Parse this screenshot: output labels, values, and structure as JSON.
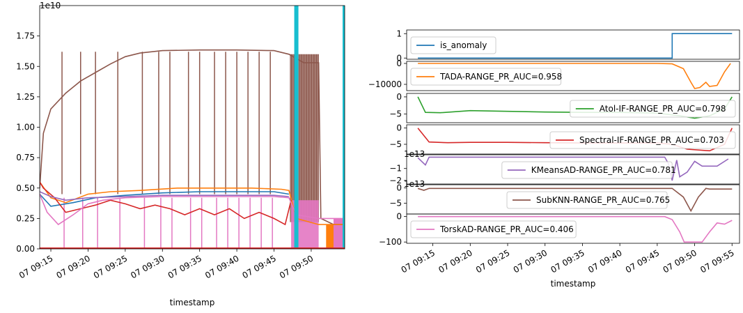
{
  "chart_data": [
    {
      "type": "line",
      "xlabel": "timestamp",
      "ylabel": "",
      "offset_text": "1e10",
      "xlim": [
        "09:13:30",
        "09:54:30"
      ],
      "ylim": [
        0,
        2.0
      ],
      "x_ticks": [
        "07 09:15",
        "07 09:20",
        "07 09:25",
        "07 09:30",
        "07 09:35",
        "07 09:40",
        "07 09:45",
        "07 09:50"
      ],
      "y_ticks": [
        "0.00",
        "0.25",
        "0.50",
        "0.75",
        "1.00",
        "1.25",
        "1.50",
        "1.75"
      ],
      "grid": false,
      "series": [
        {
          "color": "#8c564b",
          "points": [
            [
              "09:13:30",
              0.5
            ],
            [
              "09:14",
              0.95
            ],
            [
              "09:15",
              1.15
            ],
            [
              "09:17",
              1.28
            ],
            [
              "09:19",
              1.38
            ],
            [
              "09:21",
              1.45
            ],
            [
              "09:23",
              1.52
            ],
            [
              "09:25",
              1.58
            ],
            [
              "09:27",
              1.61
            ],
            [
              "09:30",
              1.63
            ],
            [
              "09:35",
              1.635
            ],
            [
              "09:40",
              1.635
            ],
            [
              "09:45",
              1.63
            ],
            [
              "09:47",
              1.6
            ],
            [
              "09:49",
              1.53
            ],
            [
              "09:51",
              1.53
            ],
            [
              "09:51.3",
              0.25
            ],
            [
              "09:53",
              0.2
            ],
            [
              "09:54.5",
              0.2
            ]
          ]
        },
        {
          "color": "#ff7f0e",
          "points": [
            [
              "09:13:30",
              0.55
            ],
            [
              "09:15",
              0.42
            ],
            [
              "09:17",
              0.38
            ],
            [
              "09:20",
              0.45
            ],
            [
              "09:23",
              0.47
            ],
            [
              "09:27",
              0.48
            ],
            [
              "09:32",
              0.5
            ],
            [
              "09:37",
              0.5
            ],
            [
              "09:42",
              0.5
            ],
            [
              "09:46",
              0.49
            ],
            [
              "09:47",
              0.48
            ],
            [
              "09:48",
              0.25
            ],
            [
              "09:51",
              0.2
            ],
            [
              "09:54.5",
              0.2
            ]
          ]
        },
        {
          "color": "#1f77b4",
          "points": [
            [
              "09:13:30",
              0.45
            ],
            [
              "09:15",
              0.35
            ],
            [
              "09:18",
              0.38
            ],
            [
              "09:21",
              0.42
            ],
            [
              "09:25",
              0.44
            ],
            [
              "09:30",
              0.46
            ],
            [
              "09:35",
              0.47
            ],
            [
              "09:40",
              0.47
            ],
            [
              "09:45",
              0.47
            ],
            [
              "09:47",
              0.45
            ]
          ]
        },
        {
          "color": "#d62728",
          "points": [
            [
              "09:13:30",
              0.55
            ],
            [
              "09:14",
              0.5
            ],
            [
              "09:15.5",
              0.42
            ],
            [
              "09:17",
              0.3
            ],
            [
              "09:19",
              0.33
            ],
            [
              "09:21",
              0.36
            ],
            [
              "09:23",
              0.4
            ],
            [
              "09:25",
              0.37
            ],
            [
              "09:27",
              0.33
            ],
            [
              "09:29",
              0.36
            ],
            [
              "09:31",
              0.33
            ],
            [
              "09:33",
              0.28
            ],
            [
              "09:35",
              0.33
            ],
            [
              "09:37",
              0.28
            ],
            [
              "09:39",
              0.33
            ],
            [
              "09:41",
              0.25
            ],
            [
              "09:43",
              0.3
            ],
            [
              "09:45",
              0.25
            ],
            [
              "09:46.5",
              0.2
            ],
            [
              "09:47.3",
              0.4
            ]
          ]
        },
        {
          "color": "#9467bd",
          "points": [
            [
              "09:13:30",
              0.47
            ],
            [
              "09:15",
              0.43
            ],
            [
              "09:17",
              0.4
            ],
            [
              "09:20",
              0.42
            ],
            [
              "09:25",
              0.43
            ],
            [
              "09:30",
              0.44
            ],
            [
              "09:35",
              0.44
            ],
            [
              "09:40",
              0.44
            ],
            [
              "09:45",
              0.44
            ],
            [
              "09:47",
              0.43
            ]
          ]
        },
        {
          "color": "#e377c2",
          "points": [
            [
              "09:13:30",
              0.45
            ],
            [
              "09:14.5",
              0.3
            ],
            [
              "09:16",
              0.2
            ],
            [
              "09:18",
              0.28
            ],
            [
              "09:20",
              0.37
            ],
            [
              "09:22",
              0.4
            ],
            [
              "09:25",
              0.42
            ],
            [
              "09:30",
              0.43
            ],
            [
              "09:35",
              0.43
            ],
            [
              "09:40",
              0.43
            ],
            [
              "09:45",
              0.43
            ],
            [
              "09:47",
              0.42
            ],
            [
              "09:48",
              0.28
            ],
            [
              "09:51",
              0.25
            ],
            [
              "09:54.5",
              0.25
            ]
          ]
        },
        {
          "color": "#17becf",
          "points": [
            [
              "09:13:30",
              0.0
            ],
            [
              "09:54.5",
              0.0
            ]
          ]
        }
      ]
    },
    {
      "type": "line",
      "xlabel": "timestamp",
      "x_ticks": [
        "07 09:15",
        "07 09:20",
        "07 09:25",
        "07 09:30",
        "07 09:35",
        "07 09:40",
        "07 09:45",
        "07 09:50",
        "07 09:55"
      ],
      "xlim": [
        "09:11:30",
        "09:56:00"
      ],
      "subplots": [
        {
          "name": "is_anomaly",
          "legend": "is_anomaly",
          "color": "#1f77b4",
          "y_ticks": [
            "0",
            "1"
          ],
          "ylim": [
            -0.05,
            1.15
          ],
          "offset_text": "",
          "legend_pos": "upper left",
          "points": [
            [
              "09:13",
              0
            ],
            [
              "09:47",
              0
            ],
            [
              "09:47",
              1
            ],
            [
              "09:55",
              1
            ]
          ]
        },
        {
          "name": "TADA",
          "legend": "TADA-RANGE_PR_AUC=0.958",
          "color": "#ff7f0e",
          "y_ticks": [
            "0",
            "−10000"
          ],
          "ylim": [
            -13000,
            1000
          ],
          "offset_text": "",
          "legend_pos": "left",
          "points": [
            [
              "09:13",
              0
            ],
            [
              "09:45",
              0
            ],
            [
              "09:47",
              -200
            ],
            [
              "09:48.5",
              -2500
            ],
            [
              "09:49.5",
              -9000
            ],
            [
              "09:50",
              -12000
            ],
            [
              "09:50.7",
              -11500
            ],
            [
              "09:51.5",
              -9000
            ],
            [
              "09:52",
              -11000
            ],
            [
              "09:53",
              -10500
            ],
            [
              "09:54",
              -4000
            ],
            [
              "09:54.8",
              0
            ]
          ]
        },
        {
          "name": "Atol-IF",
          "legend": "Atol-IF-RANGE_PR_AUC=0.798",
          "color": "#2ca02c",
          "y_ticks": [
            "0",
            "−5"
          ],
          "ylim": [
            -7.5,
            1.0
          ],
          "offset_text": "",
          "legend_pos": "right",
          "points": [
            [
              "09:13",
              0
            ],
            [
              "09:14",
              -4.5
            ],
            [
              "09:16",
              -4.6
            ],
            [
              "09:20",
              -4.0
            ],
            [
              "09:25",
              -4.2
            ],
            [
              "09:30",
              -4.4
            ],
            [
              "09:35",
              -4.5
            ],
            [
              "09:40",
              -4.5
            ],
            [
              "09:45",
              -4.7
            ],
            [
              "09:48",
              -5.5
            ],
            [
              "09:50",
              -6.2
            ],
            [
              "09:52",
              -5.5
            ],
            [
              "09:54",
              -3.5
            ],
            [
              "09:55",
              0
            ]
          ]
        },
        {
          "name": "Spectral-IF",
          "legend": "Spectral-IF-RANGE_PR_AUC=0.703",
          "color": "#d62728",
          "y_ticks": [
            "0",
            "−5"
          ],
          "ylim": [
            -8.0,
            1.0
          ],
          "offset_text": "",
          "legend_pos": "right",
          "points": [
            [
              "09:13",
              0
            ],
            [
              "09:14.5",
              -4.3
            ],
            [
              "09:17",
              -4.5
            ],
            [
              "09:20",
              -4.4
            ],
            [
              "09:25",
              -4.4
            ],
            [
              "09:30",
              -4.5
            ],
            [
              "09:35",
              -4.6
            ],
            [
              "09:40",
              -4.6
            ],
            [
              "09:45",
              -4.6
            ],
            [
              "09:47",
              -5.0
            ],
            [
              "09:49",
              -6.5
            ],
            [
              "09:52",
              -7.0
            ],
            [
              "09:54",
              -5.0
            ],
            [
              "09:55",
              0
            ]
          ]
        },
        {
          "name": "KMeansAD",
          "legend": "KMeansAD-RANGE_PR_AUC=0.781",
          "color": "#9467bd",
          "y_ticks": [
            "−1",
            "−2"
          ],
          "ylim": [
            -2.3,
            0.15
          ],
          "offset_text": "1e13",
          "legend_pos": "center",
          "points": [
            [
              "09:13",
              -0.1
            ],
            [
              "09:14",
              -0.7
            ],
            [
              "09:14.5",
              -0.05
            ],
            [
              "09:46",
              -0.05
            ],
            [
              "09:46.5",
              -0.6
            ],
            [
              "09:47",
              -2.0
            ],
            [
              "09:47.6",
              -0.3
            ],
            [
              "09:48",
              -1.7
            ],
            [
              "09:49",
              -1.3
            ],
            [
              "09:50",
              -0.4
            ],
            [
              "09:51",
              -0.8
            ],
            [
              "09:53",
              -0.8
            ],
            [
              "09:54.5",
              -0.2
            ]
          ]
        },
        {
          "name": "SubKNN",
          "legend": "SubKNN-RANGE_PR_AUC=0.765",
          "color": "#8c564b",
          "y_ticks": [
            "0",
            "−5"
          ],
          "ylim": [
            -8.5,
            1.0
          ],
          "offset_text": "1e13",
          "legend_pos": "center",
          "points": [
            [
              "09:13",
              -0.2
            ],
            [
              "09:13.8",
              -0.8
            ],
            [
              "09:14.5",
              -0.2
            ],
            [
              "09:47",
              -0.2
            ],
            [
              "09:48.5",
              -3.0
            ],
            [
              "09:49.5",
              -7.5
            ],
            [
              "09:50.5",
              -3.0
            ],
            [
              "09:51.5",
              -0.2
            ],
            [
              "09:52",
              -0.4
            ],
            [
              "09:55",
              -0.4
            ]
          ]
        },
        {
          "name": "TorskAD",
          "legend": "TorskAD-RANGE_PR_AUC=0.406",
          "color": "#e377c2",
          "y_ticks": [
            "0",
            "−100"
          ],
          "ylim": [
            -105,
            10
          ],
          "offset_text": "",
          "legend_pos": "left",
          "points": [
            [
              "09:13",
              0
            ],
            [
              "09:46",
              0
            ],
            [
              "09:47",
              -12
            ],
            [
              "09:48",
              -60
            ],
            [
              "09:48.6",
              -100
            ],
            [
              "09:51",
              -100
            ],
            [
              "09:52",
              -60
            ],
            [
              "09:53",
              -25
            ],
            [
              "09:54",
              -30
            ],
            [
              "09:55",
              -15
            ]
          ]
        }
      ]
    }
  ]
}
